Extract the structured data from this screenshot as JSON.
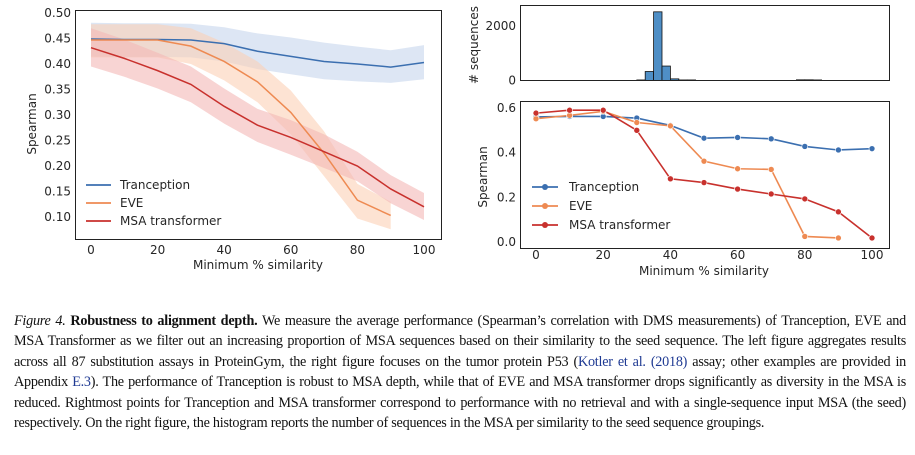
{
  "chart_data": [
    {
      "type": "area",
      "title": "",
      "xlabel": "Minimum % similarity",
      "ylabel": "Spearman",
      "xlim": [
        -5,
        103
      ],
      "ylim": [
        0.06,
        0.5
      ],
      "xticks": [
        0,
        20,
        40,
        60,
        80,
        100
      ],
      "yticks": [
        0.1,
        0.15,
        0.2,
        0.25,
        0.3,
        0.35,
        0.4,
        0.45,
        0.5
      ],
      "ytick_labels": [
        "0.10",
        "0.15",
        "0.20",
        "0.25",
        "0.30",
        "0.35",
        "0.40",
        "0.45",
        "0.50"
      ],
      "grid": false,
      "legend": "lower-left",
      "series": [
        {
          "name": "Tranception",
          "color": "#3b6fb0",
          "band": "#c6d6ec",
          "x": [
            0,
            10,
            20,
            30,
            40,
            50,
            60,
            70,
            80,
            90,
            100
          ],
          "values": [
            0.449,
            0.448,
            0.448,
            0.447,
            0.44,
            0.425,
            0.415,
            0.405,
            0.4,
            0.394,
            0.403
          ],
          "lower": [
            0.415,
            0.414,
            0.414,
            0.413,
            0.405,
            0.39,
            0.38,
            0.37,
            0.366,
            0.363,
            0.37
          ],
          "upper": [
            0.481,
            0.48,
            0.48,
            0.479,
            0.472,
            0.46,
            0.452,
            0.442,
            0.434,
            0.427,
            0.437
          ]
        },
        {
          "name": "EVE",
          "color": "#ee8a52",
          "band": "#fbd1b5",
          "x": [
            0,
            10,
            20,
            30,
            40,
            50,
            60,
            70,
            80,
            90
          ],
          "values": [
            0.447,
            0.447,
            0.447,
            0.435,
            0.405,
            0.365,
            0.305,
            0.225,
            0.133,
            0.103
          ],
          "lower": [
            0.413,
            0.413,
            0.413,
            0.4,
            0.368,
            0.325,
            0.262,
            0.18,
            0.097,
            0.076
          ],
          "upper": [
            0.478,
            0.478,
            0.478,
            0.47,
            0.442,
            0.405,
            0.348,
            0.268,
            0.165,
            0.13
          ]
        },
        {
          "name": "MSA transformer",
          "color": "#c8312d",
          "band": "#f3b8b6",
          "x": [
            0,
            10,
            20,
            30,
            40,
            50,
            60,
            70,
            80,
            90,
            100
          ],
          "values": [
            0.432,
            0.411,
            0.387,
            0.36,
            0.317,
            0.28,
            0.256,
            0.228,
            0.2,
            0.155,
            0.12
          ],
          "lower": [
            0.395,
            0.375,
            0.352,
            0.325,
            0.283,
            0.247,
            0.222,
            0.196,
            0.17,
            0.127,
            0.094
          ],
          "upper": [
            0.47,
            0.448,
            0.422,
            0.395,
            0.352,
            0.312,
            0.29,
            0.262,
            0.228,
            0.182,
            0.147
          ]
        }
      ]
    },
    {
      "type": "bar",
      "subtype": "histogram",
      "xlabel": "",
      "ylabel": "# sequences",
      "xlim": [
        -5,
        105
      ],
      "ylim": [
        0,
        2700
      ],
      "yticks": [
        0,
        2000
      ],
      "ytick_labels": [
        "0",
        "2000"
      ],
      "color": "#4f8fc6",
      "bin_width": 2.5,
      "bins": [
        {
          "x0": 30.0,
          "count": 20
        },
        {
          "x0": 32.5,
          "count": 330
        },
        {
          "x0": 35.0,
          "count": 2520
        },
        {
          "x0": 37.5,
          "count": 530
        },
        {
          "x0": 40.0,
          "count": 60
        },
        {
          "x0": 42.5,
          "count": 20
        },
        {
          "x0": 45.0,
          "count": 20
        },
        {
          "x0": 77.5,
          "count": 25
        },
        {
          "x0": 80.0,
          "count": 25
        },
        {
          "x0": 82.5,
          "count": 20
        }
      ]
    },
    {
      "type": "line",
      "xlabel": "Minimum % similarity",
      "ylabel": "Spearman",
      "xlim": [
        -5,
        103
      ],
      "ylim": [
        -0.005,
        0.615
      ],
      "xticks": [
        0,
        20,
        40,
        60,
        80,
        100
      ],
      "yticks": [
        0.0,
        0.2,
        0.4,
        0.6
      ],
      "ytick_labels": [
        "0.0",
        "0.2",
        "0.4",
        "0.6"
      ],
      "grid": false,
      "legend": "lower-left",
      "markers": true,
      "series": [
        {
          "name": "Tranception",
          "color": "#3b6fb0",
          "x": [
            0,
            10,
            20,
            30,
            40,
            50,
            60,
            70,
            80,
            90,
            100
          ],
          "values": [
            0.56,
            0.562,
            0.562,
            0.555,
            0.522,
            0.465,
            0.468,
            0.462,
            0.428,
            0.412,
            0.418
          ]
        },
        {
          "name": "EVE",
          "color": "#ee8a52",
          "x": [
            0,
            10,
            20,
            30,
            40,
            50,
            60,
            70,
            80,
            90
          ],
          "values": [
            0.552,
            0.567,
            0.585,
            0.535,
            0.52,
            0.362,
            0.328,
            0.325,
            0.025,
            0.018
          ]
        },
        {
          "name": "MSA transformer",
          "color": "#c8312d",
          "x": [
            0,
            10,
            20,
            30,
            40,
            50,
            60,
            70,
            80,
            90,
            100
          ],
          "values": [
            0.577,
            0.59,
            0.59,
            0.5,
            0.283,
            0.266,
            0.237,
            0.215,
            0.193,
            0.135,
            0.018
          ]
        }
      ]
    }
  ],
  "caption": {
    "figure_label": "Figure 4.",
    "title": "Robustness to alignment depth.",
    "text_1": " We measure the average performance (Spearman’s correlation with DMS measurements) of Tranception, EVE and MSA Transformer as we filter out an increasing proportion of MSA sequences based on their similarity to the seed sequence. The left figure aggregates results across all 87 substitution assays in ProteinGym, the right figure focuses on the tumor protein P53 (",
    "citation": "Kotler et al. (2018)",
    "text_2": " assay; other examples are provided in Appendix ",
    "appendix_ref": "E.3",
    "text_3": "). The performance of Tranception is robust to MSA depth, while that of EVE and MSA transformer drops significantly as diversity in the MSA is reduced. Rightmost points for Tranception and MSA transformer correspond to performance with no retrieval and with a single-sequence input MSA (the seed) respectively. On the right figure, the histogram reports the number of sequences in the MSA per similarity to the seed sequence groupings."
  }
}
